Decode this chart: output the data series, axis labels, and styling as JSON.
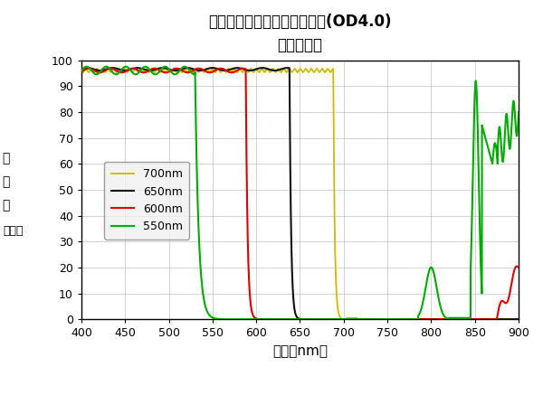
{
  "title1": "高性能ショートパスフィルタ(OD4.0)",
  "title2": "透過率特性",
  "xlabel": "波長（nm）",
  "ylabel_line1": "透",
  "ylabel_line2": "過",
  "ylabel_line3": "率",
  "ylabel_line4": "（％）",
  "xlim": [
    400,
    900
  ],
  "ylim": [
    0,
    100
  ],
  "xticks": [
    400,
    450,
    500,
    550,
    600,
    650,
    700,
    750,
    800,
    850,
    900
  ],
  "yticks": [
    0,
    10,
    20,
    30,
    40,
    50,
    60,
    70,
    80,
    90,
    100
  ],
  "legend_labels": [
    "550nm",
    "600nm",
    "650nm",
    "700nm"
  ],
  "colors": [
    "#00aa00",
    "#dd0000",
    "#111111",
    "#ccbb00"
  ],
  "background": "#ffffff",
  "grid_color": "#999999"
}
